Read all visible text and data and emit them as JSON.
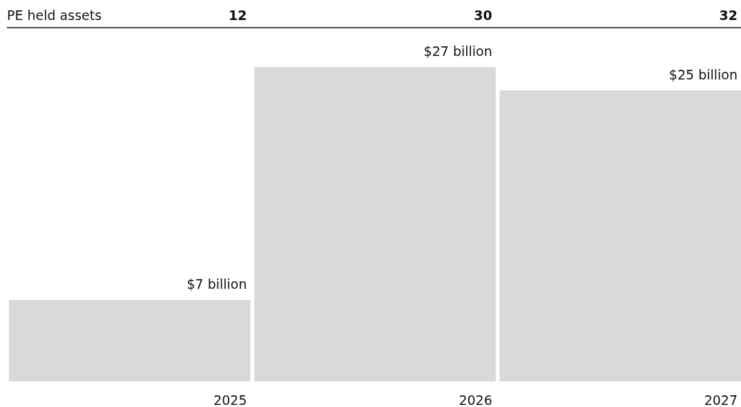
{
  "chart_data": {
    "type": "bar",
    "categories": [
      "2025",
      "2026",
      "2027"
    ],
    "values": [
      7,
      27,
      25
    ],
    "color": "#d9d9d9",
    "value_labels": [
      "$7 billion",
      "$27 billion",
      "$25 billion"
    ],
    "annotations": [
      "PE held assets",
      "12",
      "30",
      "32"
    ]
  }
}
